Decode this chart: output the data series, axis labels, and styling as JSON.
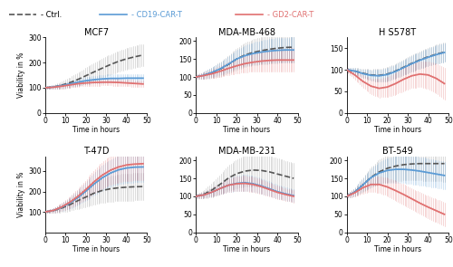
{
  "subplots": [
    {
      "title": "MCF7",
      "ylim": [
        0,
        300
      ],
      "yticks": [
        0,
        100,
        200,
        300
      ],
      "ctrl_mean": [
        100,
        103,
        110,
        120,
        133,
        148,
        163,
        178,
        192,
        205,
        215,
        223,
        230
      ],
      "ctrl_sd": [
        5,
        8,
        14,
        20,
        26,
        32,
        36,
        38,
        40,
        41,
        42,
        43,
        44
      ],
      "cd19_mean": [
        100,
        103,
        108,
        115,
        122,
        128,
        132,
        135,
        137,
        137,
        138,
        138,
        138
      ],
      "cd19_sd": [
        5,
        7,
        9,
        11,
        13,
        14,
        15,
        16,
        16,
        16,
        16,
        16,
        16
      ],
      "gd2_mean": [
        100,
        102,
        106,
        111,
        116,
        119,
        121,
        122,
        122,
        121,
        119,
        117,
        115
      ],
      "gd2_sd": [
        5,
        7,
        9,
        10,
        11,
        12,
        13,
        13,
        13,
        13,
        13,
        13,
        13
      ]
    },
    {
      "title": "MDA-MB-468",
      "ylim": [
        0,
        210
      ],
      "yticks": [
        0,
        50,
        100,
        150,
        200
      ],
      "ctrl_mean": [
        100,
        105,
        112,
        122,
        135,
        150,
        161,
        168,
        173,
        177,
        180,
        182,
        183
      ],
      "ctrl_sd": [
        5,
        10,
        15,
        20,
        25,
        30,
        33,
        36,
        38,
        40,
        41,
        42,
        43
      ],
      "cd19_mean": [
        100,
        105,
        113,
        123,
        136,
        150,
        159,
        165,
        169,
        172,
        174,
        175,
        175
      ],
      "cd19_sd": [
        5,
        9,
        13,
        17,
        21,
        25,
        28,
        30,
        32,
        33,
        34,
        34,
        35
      ],
      "gd2_mean": [
        100,
        104,
        109,
        116,
        124,
        131,
        137,
        141,
        144,
        146,
        147,
        147,
        147
      ],
      "gd2_sd": [
        5,
        8,
        12,
        15,
        18,
        21,
        24,
        26,
        28,
        30,
        31,
        32,
        33
      ]
    },
    {
      "title": "H S578T",
      "ylim": [
        0,
        175
      ],
      "yticks": [
        0,
        50,
        100,
        150
      ],
      "ctrl_mean": [
        100,
        97,
        92,
        88,
        87,
        90,
        97,
        106,
        115,
        123,
        130,
        136,
        141
      ],
      "ctrl_sd": [
        5,
        8,
        10,
        13,
        15,
        16,
        17,
        18,
        19,
        20,
        21,
        22,
        23
      ],
      "cd19_mean": [
        100,
        97,
        91,
        87,
        86,
        89,
        96,
        105,
        114,
        122,
        129,
        135,
        140
      ],
      "cd19_sd": [
        5,
        7,
        9,
        12,
        14,
        15,
        16,
        17,
        18,
        19,
        20,
        21,
        22
      ],
      "gd2_mean": [
        100,
        88,
        73,
        62,
        57,
        60,
        68,
        78,
        86,
        90,
        88,
        80,
        68
      ],
      "gd2_sd": [
        5,
        10,
        14,
        18,
        21,
        23,
        25,
        27,
        28,
        30,
        32,
        34,
        37
      ]
    },
    {
      "title": "T-47D",
      "ylim": [
        0,
        370
      ],
      "yticks": [
        100,
        200,
        300
      ],
      "ctrl_mean": [
        100,
        106,
        118,
        135,
        155,
        173,
        192,
        205,
        213,
        218,
        221,
        223,
        224
      ],
      "ctrl_sd": [
        5,
        12,
        20,
        30,
        40,
        48,
        55,
        60,
        63,
        65,
        66,
        67,
        68
      ],
      "cd19_mean": [
        100,
        107,
        122,
        143,
        170,
        202,
        237,
        267,
        290,
        306,
        315,
        319,
        320
      ],
      "cd19_sd": [
        5,
        11,
        18,
        27,
        37,
        46,
        55,
        62,
        67,
        71,
        73,
        74,
        75
      ],
      "gd2_mean": [
        100,
        107,
        124,
        147,
        176,
        210,
        248,
        280,
        304,
        320,
        330,
        334,
        336
      ],
      "gd2_sd": [
        5,
        11,
        19,
        28,
        38,
        48,
        57,
        65,
        71,
        75,
        78,
        80,
        81
      ]
    },
    {
      "title": "MDA-MB-231",
      "ylim": [
        0,
        210
      ],
      "yticks": [
        0,
        50,
        100,
        150,
        200
      ],
      "ctrl_mean": [
        100,
        106,
        118,
        134,
        151,
        163,
        170,
        173,
        172,
        168,
        162,
        156,
        150
      ],
      "ctrl_sd": [
        5,
        12,
        20,
        28,
        35,
        40,
        43,
        45,
        45,
        45,
        44,
        43,
        42
      ],
      "cd19_mean": [
        100,
        104,
        112,
        122,
        131,
        136,
        138,
        135,
        129,
        121,
        113,
        107,
        102
      ],
      "cd19_sd": [
        5,
        8,
        12,
        16,
        19,
        21,
        22,
        22,
        21,
        20,
        19,
        18,
        18
      ],
      "gd2_mean": [
        100,
        104,
        112,
        122,
        131,
        135,
        136,
        133,
        127,
        119,
        111,
        105,
        100
      ],
      "gd2_sd": [
        5,
        8,
        12,
        15,
        18,
        20,
        21,
        21,
        20,
        19,
        18,
        17,
        17
      ]
    },
    {
      "title": "BT-549",
      "ylim": [
        0,
        210
      ],
      "yticks": [
        0,
        50,
        100,
        150,
        200
      ],
      "ctrl_mean": [
        100,
        112,
        132,
        153,
        168,
        178,
        184,
        188,
        190,
        191,
        191,
        191,
        191
      ],
      "ctrl_sd": [
        5,
        12,
        20,
        28,
        34,
        39,
        42,
        44,
        46,
        47,
        48,
        49,
        50
      ],
      "cd19_mean": [
        100,
        112,
        132,
        152,
        165,
        172,
        175,
        175,
        173,
        170,
        166,
        162,
        158
      ],
      "cd19_sd": [
        5,
        11,
        18,
        25,
        30,
        34,
        37,
        38,
        39,
        39,
        39,
        38,
        38
      ],
      "gd2_mean": [
        100,
        110,
        124,
        133,
        133,
        126,
        116,
        105,
        93,
        81,
        70,
        60,
        50
      ],
      "gd2_sd": [
        5,
        10,
        16,
        20,
        23,
        25,
        27,
        28,
        29,
        30,
        31,
        32,
        33
      ]
    }
  ],
  "time_points": [
    0,
    4,
    8,
    12,
    16,
    20,
    24,
    28,
    32,
    36,
    40,
    44,
    48
  ],
  "ctrl_color": "#555555",
  "cd19_color": "#5b9bd5",
  "gd2_color": "#e07070",
  "ctrl_sd_color": "#aaaaaa",
  "cd19_sd_color": "#5b9bd5",
  "gd2_sd_color": "#e07070",
  "xlabel": "Time in hours",
  "ylabel": "Viability in %",
  "legend_labels": [
    "- Ctrl.",
    "- CD19-CAR-T",
    "- GD2-CAR-T"
  ],
  "xticks": [
    0,
    10,
    20,
    30,
    40,
    50
  ],
  "xlim": [
    0,
    50
  ]
}
